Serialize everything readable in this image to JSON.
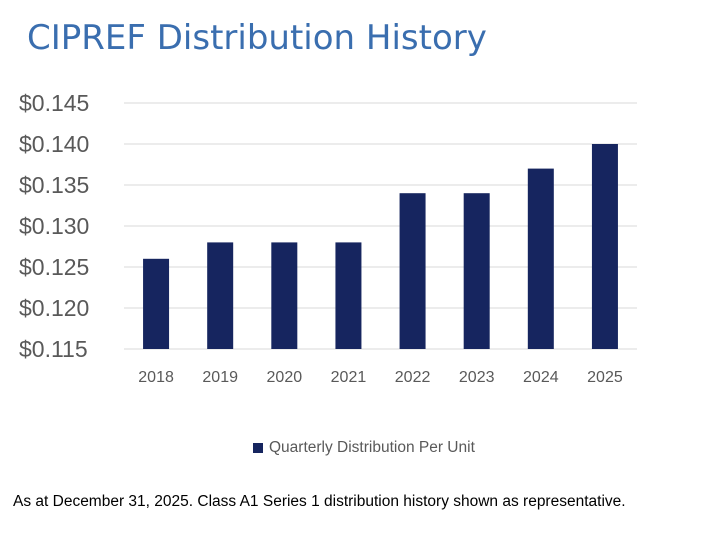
{
  "chart_data": {
    "type": "bar",
    "title": "CIPREF Distribution History",
    "categories": [
      "2018",
      "2019",
      "2020",
      "2021",
      "2022",
      "2023",
      "2024",
      "2025"
    ],
    "series": [
      {
        "name": "Quarterly Distribution Per Unit",
        "values": [
          0.126,
          0.128,
          0.128,
          0.128,
          0.134,
          0.134,
          0.137,
          0.14
        ]
      }
    ],
    "yticks": [
      "$0.115",
      "$0.120",
      "$0.125",
      "$0.130",
      "$0.135",
      "$0.140",
      "$0.145"
    ],
    "ylim": [
      0.115,
      0.145
    ],
    "xlabel": "",
    "ylabel": "",
    "grid": true,
    "legend_position": "bottom",
    "colors": {
      "bar": "#16255f",
      "title": "#3a6eaf",
      "grid": "#d9d9d9",
      "tick_text": "#595959"
    }
  },
  "footnote": "As at December 31, 2025. Class A1 Series 1 distribution history shown as representative."
}
